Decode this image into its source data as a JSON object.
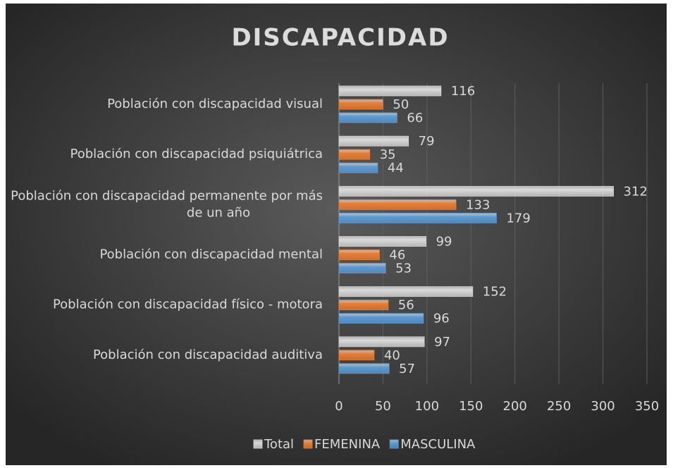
{
  "chart_data": {
    "type": "bar",
    "orientation": "horizontal",
    "title": "DISCAPACIDAD",
    "categories": [
      "Población con discapacidad visual",
      "Población con discapacidad psiquiátrica",
      "Población con discapacidad permanente por más de un año",
      "Población con discapacidad mental",
      "Población con discapacidad físico - motora",
      "Población con discapacidad auditiva"
    ],
    "series": [
      {
        "name": "Total",
        "color": "#d9d9d9",
        "values": [
          116,
          79,
          312,
          99,
          152,
          97
        ]
      },
      {
        "name": "FEMENINA",
        "color": "#ed7d31",
        "values": [
          50,
          35,
          133,
          46,
          56,
          40
        ]
      },
      {
        "name": "MASCULINA",
        "color": "#5b9bd5",
        "values": [
          66,
          44,
          179,
          53,
          96,
          57
        ]
      }
    ],
    "xlim": [
      0,
      350
    ],
    "xticks": [
      0,
      50,
      100,
      150,
      200,
      250,
      300,
      350
    ],
    "grid": true,
    "legend": "bottom"
  }
}
